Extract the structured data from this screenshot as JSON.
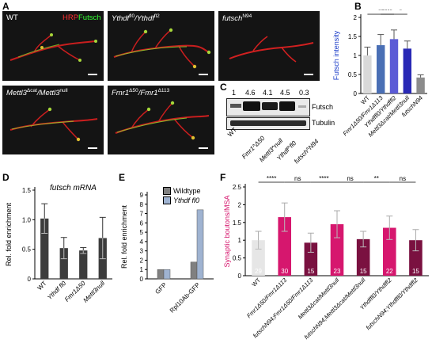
{
  "panels": {
    "A": {
      "letter": "A",
      "images": [
        {
          "label": "WT",
          "hrp": "HRP",
          "futsch": "Futsch"
        },
        {
          "label": "Ythdf",
          "label_sup": "fl0",
          "label2": "/Ythdf",
          "label2_sup": "fl2"
        },
        {
          "label": "futsch",
          "label_sup": "N94"
        },
        {
          "label": "Mettl3",
          "label_sup": "Δcat",
          "label2": "/Mettl3",
          "label2_sup": "null"
        },
        {
          "label": "Fmr1",
          "label_sup": "Δ50",
          "label2": "/Fmr1",
          "label2_sup": "Δ113"
        }
      ]
    },
    "B": {
      "letter": "B"
    },
    "C": {
      "letter": "C",
      "ratios": [
        "1",
        "4.6",
        "4.1",
        "4.5",
        "0.3"
      ],
      "bands": [
        "Futsch",
        "Tubulin"
      ],
      "lanes": [
        "WT",
        "Fmr1^Δ50",
        "Mettl3^null",
        "Ythdf^fl0",
        "futsch^N94"
      ]
    },
    "D": {
      "letter": "D",
      "title": "futsch mRNA"
    },
    "E": {
      "letter": "E",
      "legend": [
        "Wildtype",
        "Ythdf fl0"
      ]
    },
    "F": {
      "letter": "F"
    }
  },
  "chart_data": [
    {
      "id": "B",
      "type": "bar",
      "ylabel": "Futsch intensity",
      "ylim": [
        0,
        2
      ],
      "yticks": [
        0,
        0.5,
        1,
        1.5,
        2
      ],
      "categories": [
        "WT",
        "Fmr1Δ50/Fmr1Δ113",
        "Ythdffl0/Ythdffl2",
        "Mettl3Δcat/Mettl3null",
        "futschN94"
      ],
      "values": [
        1.0,
        1.27,
        1.43,
        1.18,
        0.42
      ],
      "errors": [
        0.22,
        0.28,
        0.24,
        0.2,
        0.07
      ],
      "colors": [
        "#d9d9d9",
        "#4a6fb5",
        "#5b5bd6",
        "#2929b5",
        "#8c8c8c"
      ],
      "significance": [
        {
          "from": 0,
          "to": 2,
          "label": "**"
        },
        {
          "from": 1,
          "to": 2,
          "label": "****"
        },
        {
          "from": 2,
          "to": 3,
          "label": "*"
        }
      ]
    },
    {
      "id": "D",
      "type": "bar",
      "ylabel": "Rel. fold enrichment",
      "ylim": [
        0,
        1.5
      ],
      "yticks": [
        0,
        0.5,
        1.0,
        1.5
      ],
      "yticklabels": [
        "0",
        "0.5",
        "1.0",
        "1.5"
      ],
      "categories": [
        "WT",
        "Ythdf fl0",
        "Fmr1Δ50",
        "Mettl3null"
      ],
      "values": [
        1.02,
        0.52,
        0.48,
        0.69
      ],
      "errors": [
        0.25,
        0.18,
        0.05,
        0.35
      ],
      "colors": [
        "#3c3c3c",
        "#3c3c3c",
        "#3c3c3c",
        "#3c3c3c"
      ]
    },
    {
      "id": "E",
      "type": "bar",
      "ylabel": "Rel. fold enrichment",
      "ylim": [
        0,
        9
      ],
      "yticks": [
        0,
        1,
        2,
        3,
        4,
        5,
        6,
        7,
        8,
        9
      ],
      "categories": [
        "GFP",
        "Rpl10Ab-GFP"
      ],
      "series": [
        {
          "name": "Wildtype",
          "values": [
            1.0,
            1.8
          ],
          "color": "#808080"
        },
        {
          "name": "Ythdf fl0",
          "values": [
            1.0,
            7.4
          ],
          "color": "#9fb3d1"
        }
      ]
    },
    {
      "id": "F",
      "type": "bar",
      "ylabel": "Synaptic boutons/MSA",
      "ylim": [
        0,
        2.5
      ],
      "yticks": [
        0,
        0.5,
        1,
        1.5,
        2,
        2.5
      ],
      "categories": [
        "WT",
        "Fmr1Δ50/Fmr1Δ113",
        "futschN94;Fmr1Δ50/Fmr1Δ113",
        "Mettl3Δcat/Mettl3null",
        "futschN94;Mettl3Δcat/Mettl3null",
        "Ythdffl0/Ythdffl2",
        "futschN94;Ythdffl0/Ythdffl2"
      ],
      "values": [
        1.0,
        1.65,
        0.93,
        1.45,
        1.03,
        1.35,
        1.0
      ],
      "errors": [
        0.25,
        0.4,
        0.27,
        0.38,
        0.22,
        0.33,
        0.3
      ],
      "n": [
        "29",
        "30",
        "15",
        "23",
        "15",
        "22",
        "15"
      ],
      "colors": [
        "#e6e6e6",
        "#d6176e",
        "#7a1140",
        "#d6176e",
        "#7a1140",
        "#d6176e",
        "#7a1140"
      ],
      "significance": [
        {
          "from": 0,
          "to": 1,
          "label": "****"
        },
        {
          "from": 1,
          "to": 2,
          "label": "ns"
        },
        {
          "from": 2,
          "to": 3,
          "label": "****"
        },
        {
          "from": 3,
          "to": 4,
          "label": "ns"
        },
        {
          "from": 4,
          "to": 5,
          "label": "**"
        },
        {
          "from": 5,
          "to": 6,
          "label": "ns"
        }
      ]
    }
  ]
}
